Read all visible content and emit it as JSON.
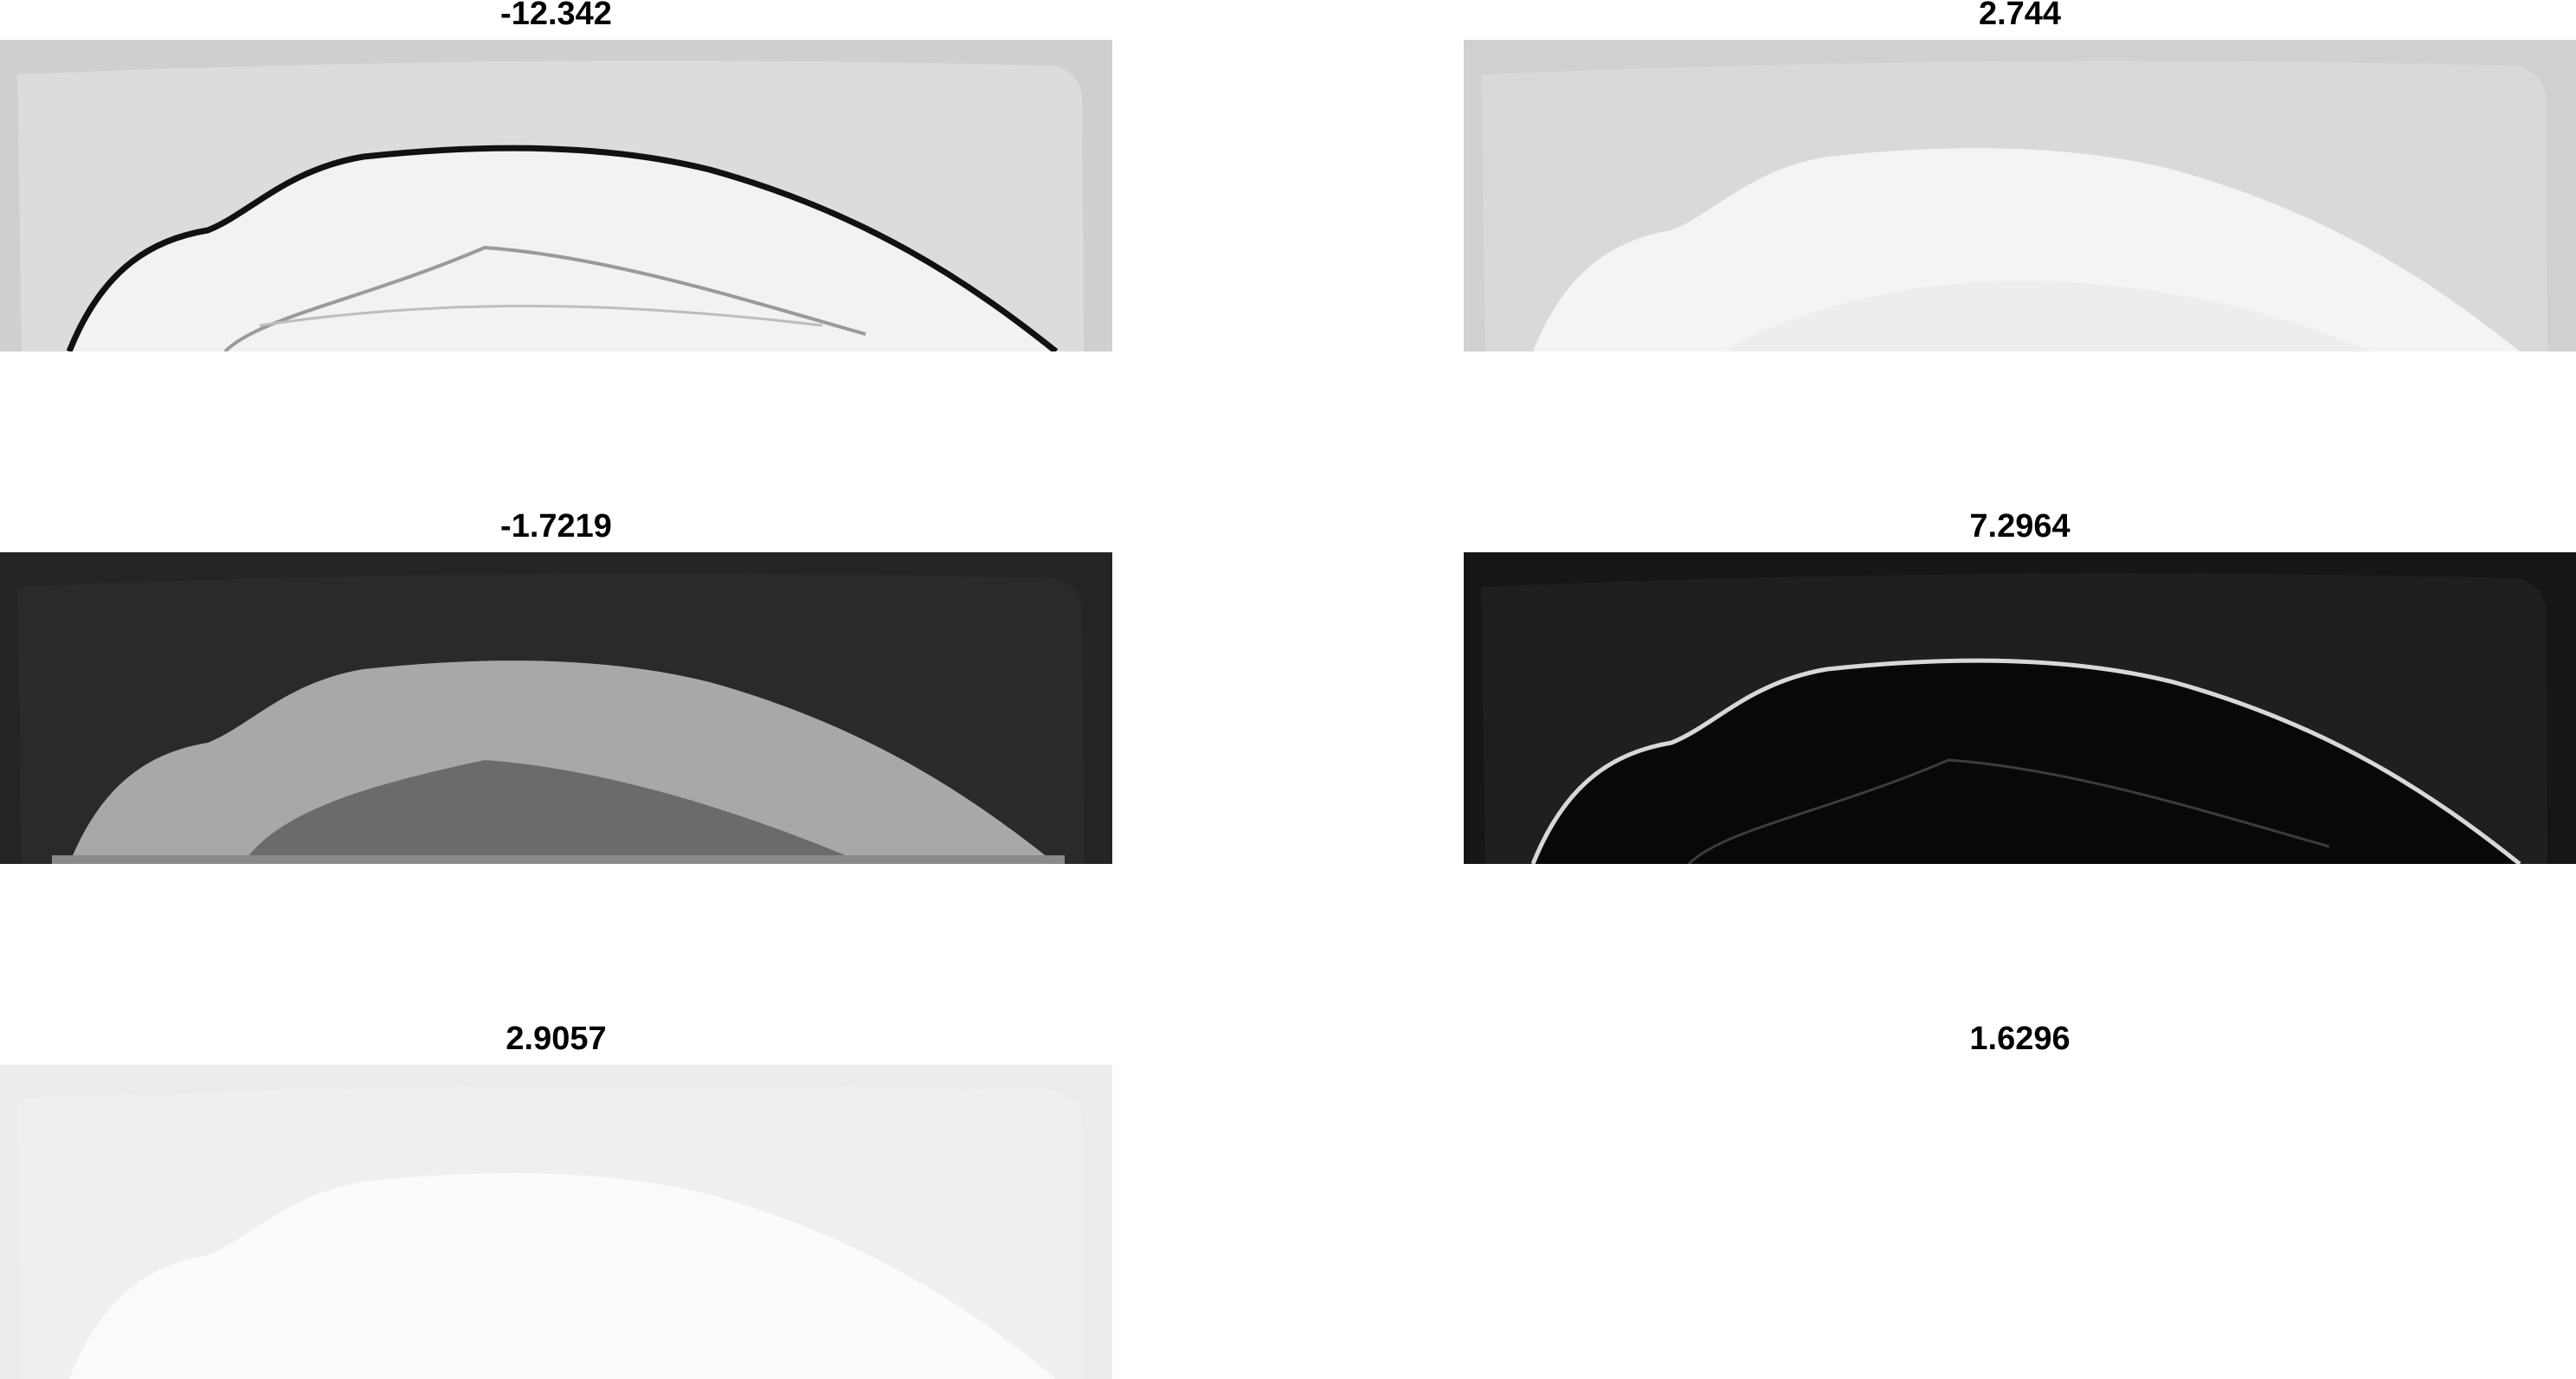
{
  "panels": [
    {
      "title": "-12.342",
      "style": "edge-light",
      "bg": "#cfcfcf"
    },
    {
      "title": "2.744",
      "style": "bright-faint",
      "bg": "#d0d0d0"
    },
    {
      "title": "-1.7219",
      "style": "intensity-dark",
      "bg": "#242424"
    },
    {
      "title": "7.2964",
      "style": "edge-dark",
      "bg": "#161616"
    },
    {
      "title": "2.9057",
      "style": "pale",
      "bg": "#ececec"
    },
    {
      "title": "1.6296",
      "style": "empty",
      "bg": "#ffffff"
    }
  ]
}
